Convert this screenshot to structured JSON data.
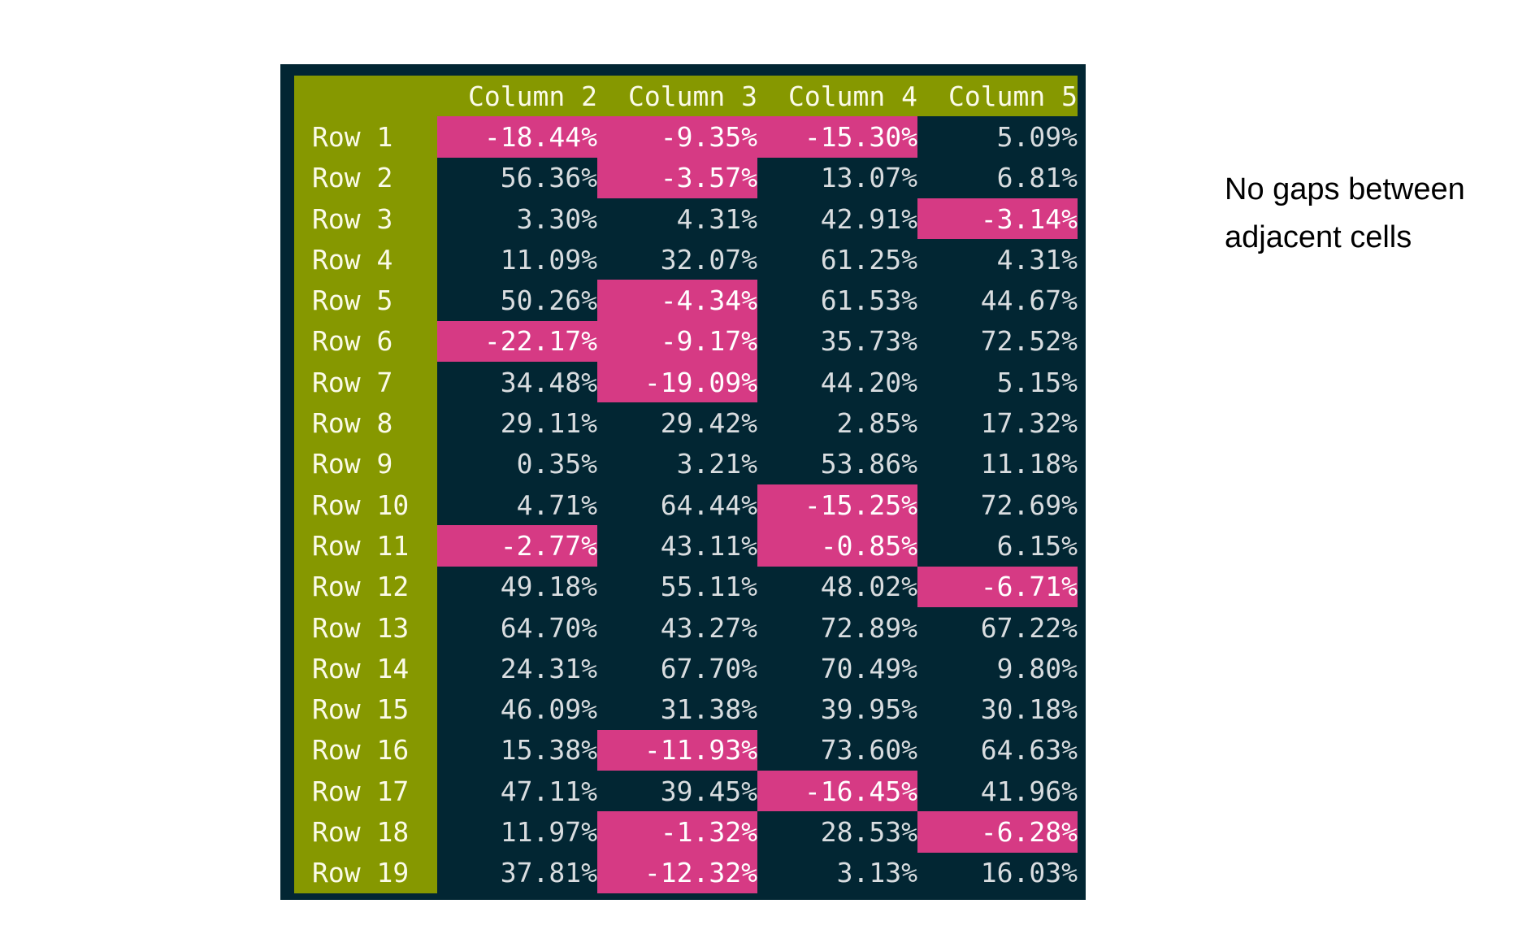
{
  "chart_data": {
    "type": "table",
    "title": "",
    "columns": [
      "",
      "Column 2",
      "Column 3",
      "Column 4",
      "Column 5"
    ],
    "rows": [
      {
        "label": "Row 1",
        "values": [
          "-18.44%",
          "-9.35%",
          "-15.30%",
          "5.09%"
        ]
      },
      {
        "label": "Row 2",
        "values": [
          "56.36%",
          "-3.57%",
          "13.07%",
          "6.81%"
        ]
      },
      {
        "label": "Row 3",
        "values": [
          "3.30%",
          "4.31%",
          "42.91%",
          "-3.14%"
        ]
      },
      {
        "label": "Row 4",
        "values": [
          "11.09%",
          "32.07%",
          "61.25%",
          "4.31%"
        ]
      },
      {
        "label": "Row 5",
        "values": [
          "50.26%",
          "-4.34%",
          "61.53%",
          "44.67%"
        ]
      },
      {
        "label": "Row 6",
        "values": [
          "-22.17%",
          "-9.17%",
          "35.73%",
          "72.52%"
        ]
      },
      {
        "label": "Row 7",
        "values": [
          "34.48%",
          "-19.09%",
          "44.20%",
          "5.15%"
        ]
      },
      {
        "label": "Row 8",
        "values": [
          "29.11%",
          "29.42%",
          "2.85%",
          "17.32%"
        ]
      },
      {
        "label": "Row 9",
        "values": [
          "0.35%",
          "3.21%",
          "53.86%",
          "11.18%"
        ]
      },
      {
        "label": "Row 10",
        "values": [
          "4.71%",
          "64.44%",
          "-15.25%",
          "72.69%"
        ]
      },
      {
        "label": "Row 11",
        "values": [
          "-2.77%",
          "43.11%",
          "-0.85%",
          "6.15%"
        ]
      },
      {
        "label": "Row 12",
        "values": [
          "49.18%",
          "55.11%",
          "48.02%",
          "-6.71%"
        ]
      },
      {
        "label": "Row 13",
        "values": [
          "64.70%",
          "43.27%",
          "72.89%",
          "67.22%"
        ]
      },
      {
        "label": "Row 14",
        "values": [
          "24.31%",
          "67.70%",
          "70.49%",
          "9.80%"
        ]
      },
      {
        "label": "Row 15",
        "values": [
          "46.09%",
          "31.38%",
          "39.95%",
          "30.18%"
        ]
      },
      {
        "label": "Row 16",
        "values": [
          "15.38%",
          "-11.93%",
          "73.60%",
          "64.63%"
        ]
      },
      {
        "label": "Row 17",
        "values": [
          "47.11%",
          "39.45%",
          "-16.45%",
          "41.96%"
        ]
      },
      {
        "label": "Row 18",
        "values": [
          "11.97%",
          "-1.32%",
          "28.53%",
          "-6.28%"
        ]
      },
      {
        "label": "Row 19",
        "values": [
          "37.81%",
          "-12.32%",
          "3.13%",
          "16.03%"
        ]
      }
    ]
  },
  "colors": {
    "table_background": "#022633",
    "header_background": "#869800",
    "negative_highlight": "#d63a84",
    "cell_text": "#d9dde0",
    "header_text": "#fbfbe8"
  },
  "note": {
    "line1": "No gaps between",
    "line2": "adjacent cells"
  }
}
